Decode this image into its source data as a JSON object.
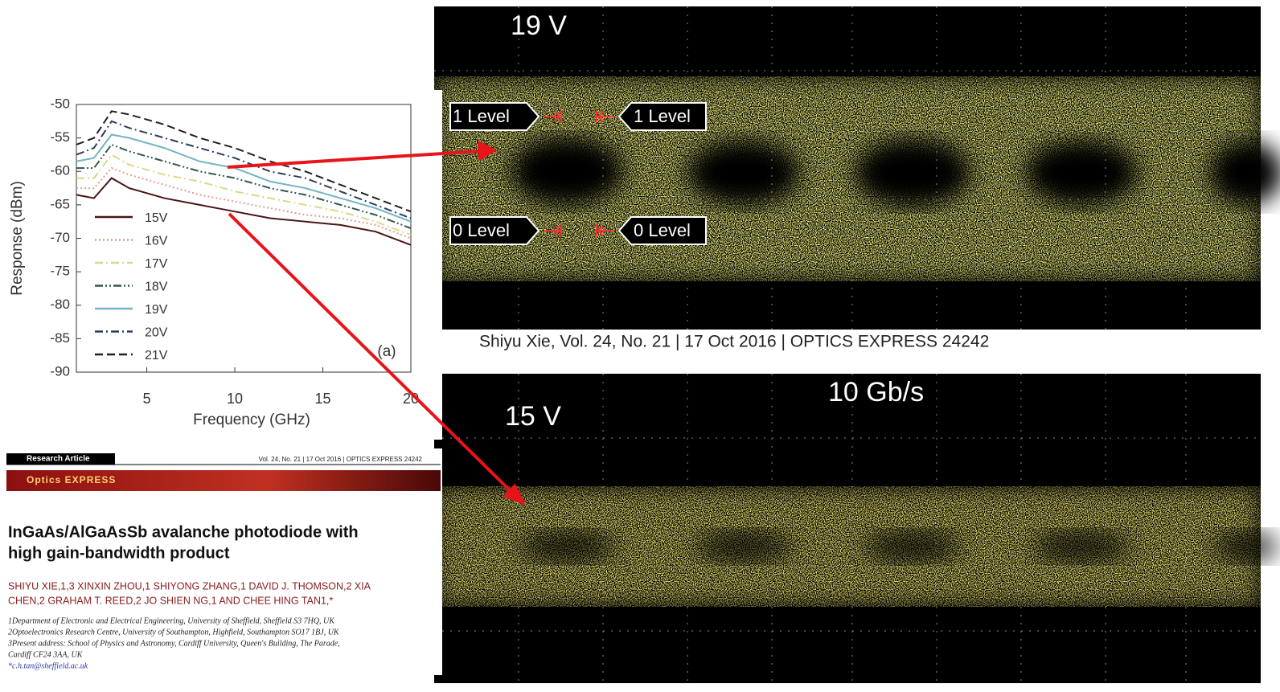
{
  "chart_data": {
    "type": "line",
    "y_label": "Response (dBm)",
    "x_label": "Frequency (GHz)",
    "annotation": "(a)",
    "x": [
      1,
      2,
      3,
      4,
      6,
      8,
      10,
      12,
      14,
      16,
      18,
      20
    ],
    "xlim": [
      1,
      20
    ],
    "xticks": [
      5,
      10,
      15,
      20
    ],
    "ylim": [
      -90,
      -50
    ],
    "yticks": [
      -50,
      -55,
      -60,
      -65,
      -70,
      -75,
      -80,
      -85,
      -90
    ],
    "legend": "lower-left",
    "series": [
      {
        "name": "15V",
        "color": "#4a1414",
        "dash": "solid",
        "values": [
          -63.5,
          -64,
          -61,
          -62.5,
          -64,
          -65,
          -66,
          -67,
          -67.5,
          -68,
          -69,
          -71
        ]
      },
      {
        "name": "16V",
        "color": "#e89a90",
        "dash": "dot",
        "values": [
          -62.5,
          -62.5,
          -59.5,
          -60.5,
          -62,
          -63.5,
          -64.5,
          -65.5,
          -66.5,
          -67,
          -68,
          -70
        ]
      },
      {
        "name": "17V",
        "color": "#dcd88a",
        "dash": "dashdot",
        "values": [
          -61,
          -61,
          -57.5,
          -59,
          -60.5,
          -61.5,
          -63,
          -64,
          -65,
          -66,
          -67.5,
          -69.5
        ]
      },
      {
        "name": "18V",
        "color": "#2f5a44",
        "dash": "dashdotdot",
        "values": [
          -59.5,
          -59.5,
          -56,
          -57,
          -58.5,
          -60,
          -61,
          -62.5,
          -63.5,
          -65,
          -66.5,
          -68.5
        ]
      },
      {
        "name": "19V",
        "color": "#74b4c4",
        "dash": "solid",
        "values": [
          -58.5,
          -58,
          -54.5,
          -55,
          -56.5,
          -58.5,
          -59.5,
          -61.5,
          -62.5,
          -64,
          -65.5,
          -67.5
        ]
      },
      {
        "name": "20V",
        "color": "#2c3c5c",
        "dash": "dashdot",
        "values": [
          -57.5,
          -56.5,
          -52.5,
          -53.5,
          -55,
          -56.5,
          -58,
          -60,
          -61,
          -63,
          -65,
          -67
        ]
      },
      {
        "name": "21V",
        "color": "#202020",
        "dash": "dash",
        "values": [
          -56,
          -55,
          -51,
          -51.5,
          -53,
          -55,
          -56.5,
          -58.5,
          -60,
          -62,
          -64,
          -66
        ]
      }
    ]
  },
  "eye_top": {
    "voltage": "19 V",
    "level_1_left": "1 Level",
    "level_1_right": "1 Level",
    "level_0_left": "0 Level",
    "level_0_right": "0 Level"
  },
  "citation": "Shiyu Xie, Vol. 24, No. 21 | 17 Oct 2016 | OPTICS EXPRESS 24242",
  "eye_bottom": {
    "rate": "10 Gb/s",
    "voltage": "15 V"
  },
  "paper": {
    "label": "Research Article",
    "header": "Vol. 24, No. 21 | 17 Oct 2016 | OPTICS EXPRESS 24242",
    "journal": "Optics EXPRESS",
    "title_lines": [
      "InGaAs/AlGaAsSb avalanche photodiode with",
      "high gain-bandwidth product"
    ],
    "author_lines": [
      "SHIYU XIE,1,3 XINXIN ZHOU,1 SHIYONG ZHANG,1 DAVID J. THOMSON,2 XIA",
      "CHEN,2 GRAHAM T. REED,2 JO SHIEN NG,1 AND CHEE HING TAN1,*"
    ],
    "affiliations": [
      "1Department of Electronic and Electrical Engineering, University of Sheffield, Sheffield S3 7HQ, UK",
      "2Optoelectronics Research Centre, University of Southampton, Highfield, Southampton SO17 1BJ, UK",
      "3Present address: School of Physics and Astronomy, Cardiff University, Queen's Building, The Parade,",
      "Cardiff CF24 3AA, UK",
      "*c.h.tan@sheffield.ac.uk"
    ]
  }
}
